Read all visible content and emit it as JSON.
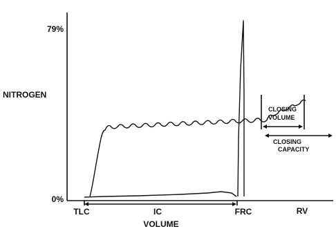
{
  "chart_data": {
    "type": "line",
    "title": "",
    "ylabel": "NITROGEN",
    "xlabel": "VOLUME",
    "y_ticks": [
      "79%",
      "0%"
    ],
    "x_markers": [
      "TLC",
      "IC",
      "FRC",
      "RV"
    ],
    "annotations": {
      "closing_volume": [
        "CLOSING",
        "VOLUME"
      ],
      "closing_capacity": [
        "CLOSING",
        "CAPACITY"
      ]
    },
    "grid": false
  }
}
